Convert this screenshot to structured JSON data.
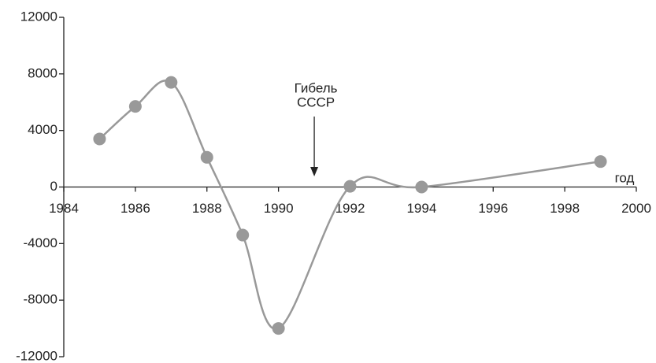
{
  "chart_data": {
    "type": "line",
    "x": [
      1985,
      1986,
      1987,
      1988,
      1989,
      1990,
      1992,
      1994,
      1999
    ],
    "series": [
      {
        "color": "#999999",
        "values": [
          3400,
          5700,
          7400,
          2100,
          -3400,
          -10000,
          50,
          0,
          1800
        ]
      }
    ],
    "xlim": [
      1984,
      2000
    ],
    "xticks": [
      1984,
      1986,
      1988,
      1990,
      1992,
      1994,
      1996,
      1998,
      2000
    ],
    "ylim": [
      -12000,
      12000
    ],
    "yticks": [
      -12000,
      -8000,
      -4000,
      0,
      4000,
      8000,
      12000
    ],
    "xlabel": "год",
    "annotation": {
      "lines": [
        "Гибель",
        "СССР"
      ],
      "x": 1991
    },
    "smooth": true
  }
}
